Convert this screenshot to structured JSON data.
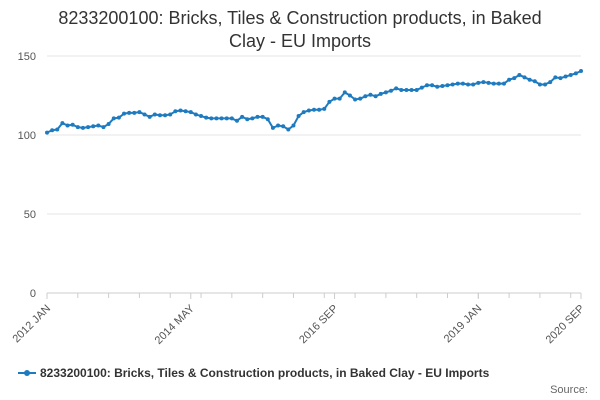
{
  "page": {
    "title_line1": "8233200100: Bricks, Tiles & Construction products, in Baked",
    "title_line2": "Clay - EU Imports",
    "source_label": "Source:"
  },
  "colors": {
    "series": "#1f7bbf",
    "grid": "#e6e6e6",
    "axis": "#cccccc"
  },
  "chart_data": {
    "type": "line",
    "title": "8233200100: Bricks, Tiles & Construction products, in Baked Clay - EU Imports",
    "xlabel": "",
    "ylabel": "",
    "ylim": [
      0,
      150
    ],
    "yticks": [
      0,
      50,
      100,
      150
    ],
    "x_start": "2012 JAN",
    "x_end": "2020 SEP",
    "xticks": [
      {
        "label": "2012 JAN",
        "index": 0
      },
      {
        "label": "2014 MAY",
        "index": 28
      },
      {
        "label": "2016 SEP",
        "index": 56
      },
      {
        "label": "2019 JAN",
        "index": 84
      },
      {
        "label": "2020 SEP",
        "index": 104
      }
    ],
    "grid": "horizontal",
    "legend_position": "bottom",
    "series": [
      {
        "name": "8233200100: Bricks, Tiles & Construction products, in Baked Clay - EU Imports",
        "values": [
          101.5,
          103,
          103.5,
          107.5,
          106,
          106.5,
          105,
          104.5,
          105,
          105.5,
          106,
          105,
          107,
          110.5,
          111,
          113.5,
          114,
          114,
          114.5,
          113,
          111.5,
          113,
          112.5,
          112.5,
          113,
          115,
          115.5,
          115,
          114.5,
          113,
          112,
          111,
          110.5,
          110.5,
          110.5,
          110.5,
          110.5,
          109,
          111.5,
          110,
          110.5,
          111.5,
          111.5,
          110,
          104.5,
          106,
          105.5,
          103.5,
          106,
          112,
          114.5,
          115.5,
          116,
          116,
          116.5,
          121,
          123,
          123,
          127,
          125,
          122.5,
          123,
          124.5,
          125.5,
          124.5,
          126,
          127,
          128,
          129.5,
          128.5,
          128.5,
          128.5,
          128.5,
          130,
          131.5,
          131.5,
          130.5,
          131,
          131.5,
          132,
          132.5,
          132.5,
          132,
          132,
          133,
          133.5,
          133,
          132.5,
          132.5,
          132.5,
          135,
          136,
          138,
          136.5,
          135,
          134,
          132,
          132,
          133.5,
          136.5,
          136,
          137,
          138,
          139,
          140.5
        ]
      }
    ]
  }
}
